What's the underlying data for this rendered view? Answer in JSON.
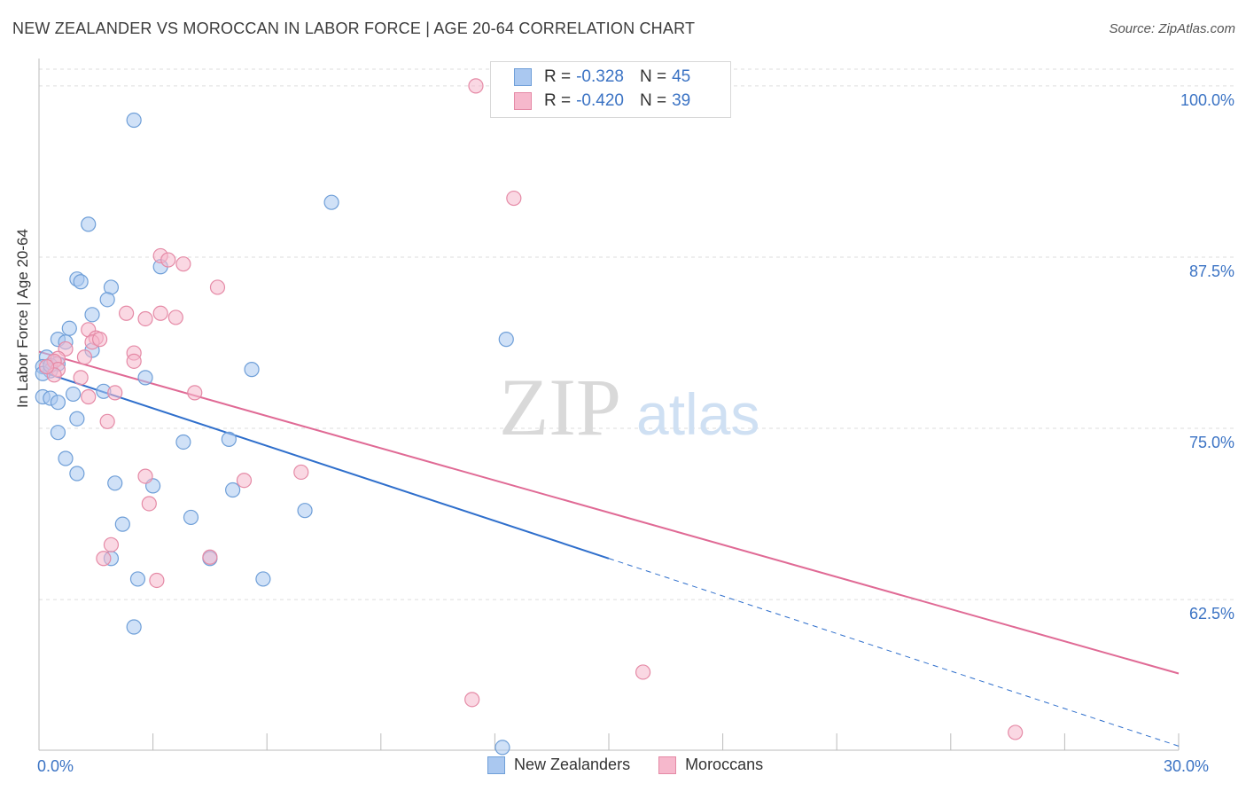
{
  "title": "NEW ZEALANDER VS MOROCCAN IN LABOR FORCE | AGE 20-64 CORRELATION CHART",
  "source": "Source: ZipAtlas.com",
  "watermark": {
    "zip": "ZIP",
    "atlas": "atlas"
  },
  "colors": {
    "blue_fill": "#aac8f0",
    "blue_stroke": "#6f9fd8",
    "blue_line": "#2f6fcc",
    "pink_fill": "#f6b8cc",
    "pink_stroke": "#e58aa6",
    "pink_line": "#e06a95",
    "tick_label": "#3b73c4",
    "grid": "#dddddd"
  },
  "stats": {
    "blue": {
      "r_label": "R =",
      "r_value": "-0.328",
      "n_label": "N =",
      "n_value": "45"
    },
    "pink": {
      "r_label": "R =",
      "r_value": "-0.420",
      "n_label": "N =",
      "n_value": "39"
    }
  },
  "legend": {
    "blue": "New Zealanders",
    "pink": "Moroccans"
  },
  "chart_data": {
    "type": "scatter",
    "title": "NEW ZEALANDER VS MOROCCAN IN LABOR FORCE | AGE 20-64 CORRELATION CHART",
    "xlabel": "",
    "ylabel": "In Labor Force | Age 20-64",
    "xlim": [
      0,
      30
    ],
    "ylim": [
      51.5,
      102
    ],
    "x_tick_labels": [
      {
        "value": 0,
        "label": "0.0%"
      },
      {
        "value": 30,
        "label": "30.0%"
      }
    ],
    "y_ticks": [
      {
        "value": 100,
        "label": "100.0%"
      },
      {
        "value": 87.5,
        "label": "87.5%"
      },
      {
        "value": 75,
        "label": "75.0%"
      },
      {
        "value": 62.5,
        "label": "62.5%"
      }
    ],
    "series": [
      {
        "name": "New Zealanders",
        "color": "blue",
        "points": [
          [
            2.5,
            97.5
          ],
          [
            7.7,
            91.5
          ],
          [
            1.3,
            89.9
          ],
          [
            3.2,
            86.8
          ],
          [
            1.0,
            85.9
          ],
          [
            1.1,
            85.7
          ],
          [
            1.9,
            85.3
          ],
          [
            1.8,
            84.4
          ],
          [
            1.4,
            83.3
          ],
          [
            0.8,
            82.3
          ],
          [
            0.5,
            81.5
          ],
          [
            0.7,
            81.3
          ],
          [
            12.3,
            81.5
          ],
          [
            1.4,
            80.7
          ],
          [
            0.2,
            80.2
          ],
          [
            0.5,
            79.7
          ],
          [
            5.6,
            79.3
          ],
          [
            0.1,
            79.5
          ],
          [
            0.3,
            79.2
          ],
          [
            2.8,
            78.7
          ],
          [
            1.7,
            77.7
          ],
          [
            0.9,
            77.5
          ],
          [
            0.1,
            77.3
          ],
          [
            0.3,
            77.2
          ],
          [
            0.5,
            76.9
          ],
          [
            1.0,
            75.7
          ],
          [
            0.5,
            74.7
          ],
          [
            5.0,
            74.2
          ],
          [
            3.8,
            74.0
          ],
          [
            0.7,
            72.8
          ],
          [
            1.0,
            71.7
          ],
          [
            2.0,
            71.0
          ],
          [
            3.0,
            70.8
          ],
          [
            5.1,
            70.5
          ],
          [
            7.0,
            69.0
          ],
          [
            4.0,
            68.5
          ],
          [
            2.2,
            68.0
          ],
          [
            1.9,
            65.5
          ],
          [
            4.5,
            65.5
          ],
          [
            2.6,
            64.0
          ],
          [
            5.9,
            64.0
          ],
          [
            2.5,
            60.5
          ],
          [
            12.2,
            51.7
          ],
          [
            0.1,
            79.0
          ],
          [
            0.3,
            79.6
          ]
        ]
      },
      {
        "name": "Moroccans",
        "color": "pink",
        "points": [
          [
            11.5,
            100.0
          ],
          [
            12.5,
            91.8
          ],
          [
            3.2,
            87.6
          ],
          [
            3.4,
            87.3
          ],
          [
            3.8,
            87.0
          ],
          [
            4.7,
            85.3
          ],
          [
            2.3,
            83.4
          ],
          [
            3.2,
            83.4
          ],
          [
            3.6,
            83.1
          ],
          [
            2.8,
            83.0
          ],
          [
            1.3,
            82.2
          ],
          [
            1.5,
            81.6
          ],
          [
            1.4,
            81.3
          ],
          [
            1.6,
            81.5
          ],
          [
            0.7,
            80.8
          ],
          [
            2.5,
            80.5
          ],
          [
            0.5,
            80.1
          ],
          [
            1.2,
            80.2
          ],
          [
            0.4,
            79.9
          ],
          [
            2.5,
            79.9
          ],
          [
            0.5,
            79.3
          ],
          [
            0.4,
            78.9
          ],
          [
            1.1,
            78.7
          ],
          [
            2.0,
            77.6
          ],
          [
            4.1,
            77.6
          ],
          [
            1.3,
            77.3
          ],
          [
            1.8,
            75.5
          ],
          [
            2.8,
            71.5
          ],
          [
            6.9,
            71.8
          ],
          [
            5.4,
            71.2
          ],
          [
            2.9,
            69.5
          ],
          [
            1.9,
            66.5
          ],
          [
            1.7,
            65.5
          ],
          [
            4.5,
            65.6
          ],
          [
            3.1,
            63.9
          ],
          [
            15.9,
            57.2
          ],
          [
            11.4,
            55.2
          ],
          [
            25.7,
            52.8
          ],
          [
            0.2,
            79.5
          ]
        ]
      }
    ],
    "trendlines": [
      {
        "name": "New Zealanders",
        "x0": 0,
        "y0": 79.2,
        "x_solid_end": 15.0,
        "x1": 30,
        "y1": 51.8
      },
      {
        "name": "Moroccans",
        "x0": 0,
        "y0": 80.6,
        "x1": 30,
        "y1": 57.1
      }
    ]
  }
}
